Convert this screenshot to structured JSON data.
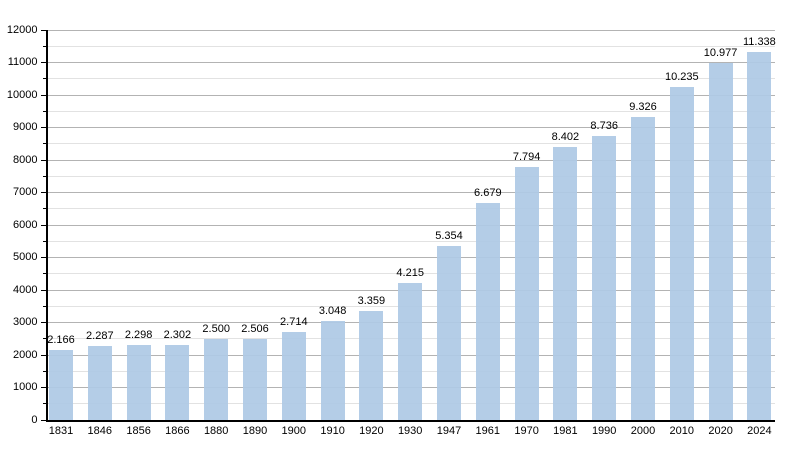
{
  "chart_data": {
    "type": "bar",
    "categories": [
      "1831",
      "1846",
      "1856",
      "1866",
      "1880",
      "1890",
      "1900",
      "1910",
      "1920",
      "1930",
      "1947",
      "1961",
      "1970",
      "1981",
      "1990",
      "2000",
      "2010",
      "2020",
      "2024"
    ],
    "values": [
      2166,
      2287,
      2298,
      2302,
      2500,
      2506,
      2714,
      3048,
      3359,
      4215,
      5354,
      6679,
      7794,
      8402,
      8736,
      9326,
      10235,
      10977,
      11338
    ],
    "value_labels": [
      "2.166",
      "2.287",
      "2.298",
      "2.302",
      "2.500",
      "2.506",
      "2.714",
      "3.048",
      "3.359",
      "4.215",
      "5.354",
      "6.679",
      "7.794",
      "8.402",
      "8.736",
      "9.326",
      "10.235",
      "10.977",
      "11.338"
    ],
    "y_tick_labels": [
      "0",
      "1000",
      "2000",
      "3000",
      "4000",
      "5000",
      "6000",
      "7000",
      "8000",
      "9000",
      "10000",
      "11000",
      "12000"
    ],
    "ylim": [
      0,
      12000
    ],
    "y_major_step": 1000,
    "y_minor_step": 500,
    "grid": true,
    "legend": "none",
    "colors": {
      "bar_fill": "#aec9e5",
      "grid_major": "#b3b3b3",
      "grid_minor": "#e2e2e2",
      "axis": "#000000",
      "label_text": "#000000",
      "background": "#ffffff"
    }
  }
}
